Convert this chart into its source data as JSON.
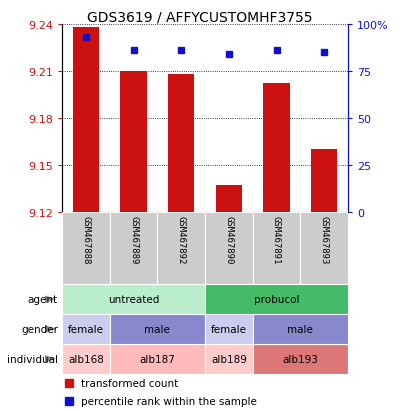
{
  "title": "GDS3619 / AFFYCUSTOMHF3755",
  "samples": [
    "GSM467888",
    "GSM467889",
    "GSM467892",
    "GSM467890",
    "GSM467891",
    "GSM467893"
  ],
  "bar_values": [
    9.238,
    9.21,
    9.208,
    9.137,
    9.202,
    9.16
  ],
  "bar_bottom": 9.12,
  "percentile_values": [
    93,
    86,
    86,
    84,
    86,
    85
  ],
  "percentile_scale_max": 100,
  "ylim_left": [
    9.12,
    9.24
  ],
  "yticks_left": [
    9.12,
    9.15,
    9.18,
    9.21,
    9.24
  ],
  "yticks_right": [
    0,
    25,
    50,
    75,
    100
  ],
  "bar_color": "#cc1111",
  "percentile_color": "#1111cc",
  "sample_bg": "#cccccc",
  "agent_groups": [
    {
      "label": "untreated",
      "start": 0,
      "end": 3,
      "color": "#bbeecc"
    },
    {
      "label": "probucol",
      "start": 3,
      "end": 6,
      "color": "#44bb66"
    }
  ],
  "gender_groups": [
    {
      "label": "female",
      "start": 0,
      "end": 1,
      "color": "#ccccee"
    },
    {
      "label": "male",
      "start": 1,
      "end": 3,
      "color": "#8888cc"
    },
    {
      "label": "female",
      "start": 3,
      "end": 4,
      "color": "#ccccee"
    },
    {
      "label": "male",
      "start": 4,
      "end": 6,
      "color": "#8888cc"
    }
  ],
  "individual_groups": [
    {
      "label": "alb168",
      "start": 0,
      "end": 1,
      "color": "#ffcccc"
    },
    {
      "label": "alb187",
      "start": 1,
      "end": 3,
      "color": "#ffbbbb"
    },
    {
      "label": "alb189",
      "start": 3,
      "end": 4,
      "color": "#ffcccc"
    },
    {
      "label": "alb193",
      "start": 4,
      "end": 6,
      "color": "#dd7777"
    }
  ],
  "row_labels": [
    "agent",
    "gender",
    "individual"
  ],
  "legend_items": [
    {
      "label": "transformed count",
      "color": "#cc1111"
    },
    {
      "label": "percentile rank within the sample",
      "color": "#1111cc"
    }
  ],
  "background_color": "#ffffff"
}
